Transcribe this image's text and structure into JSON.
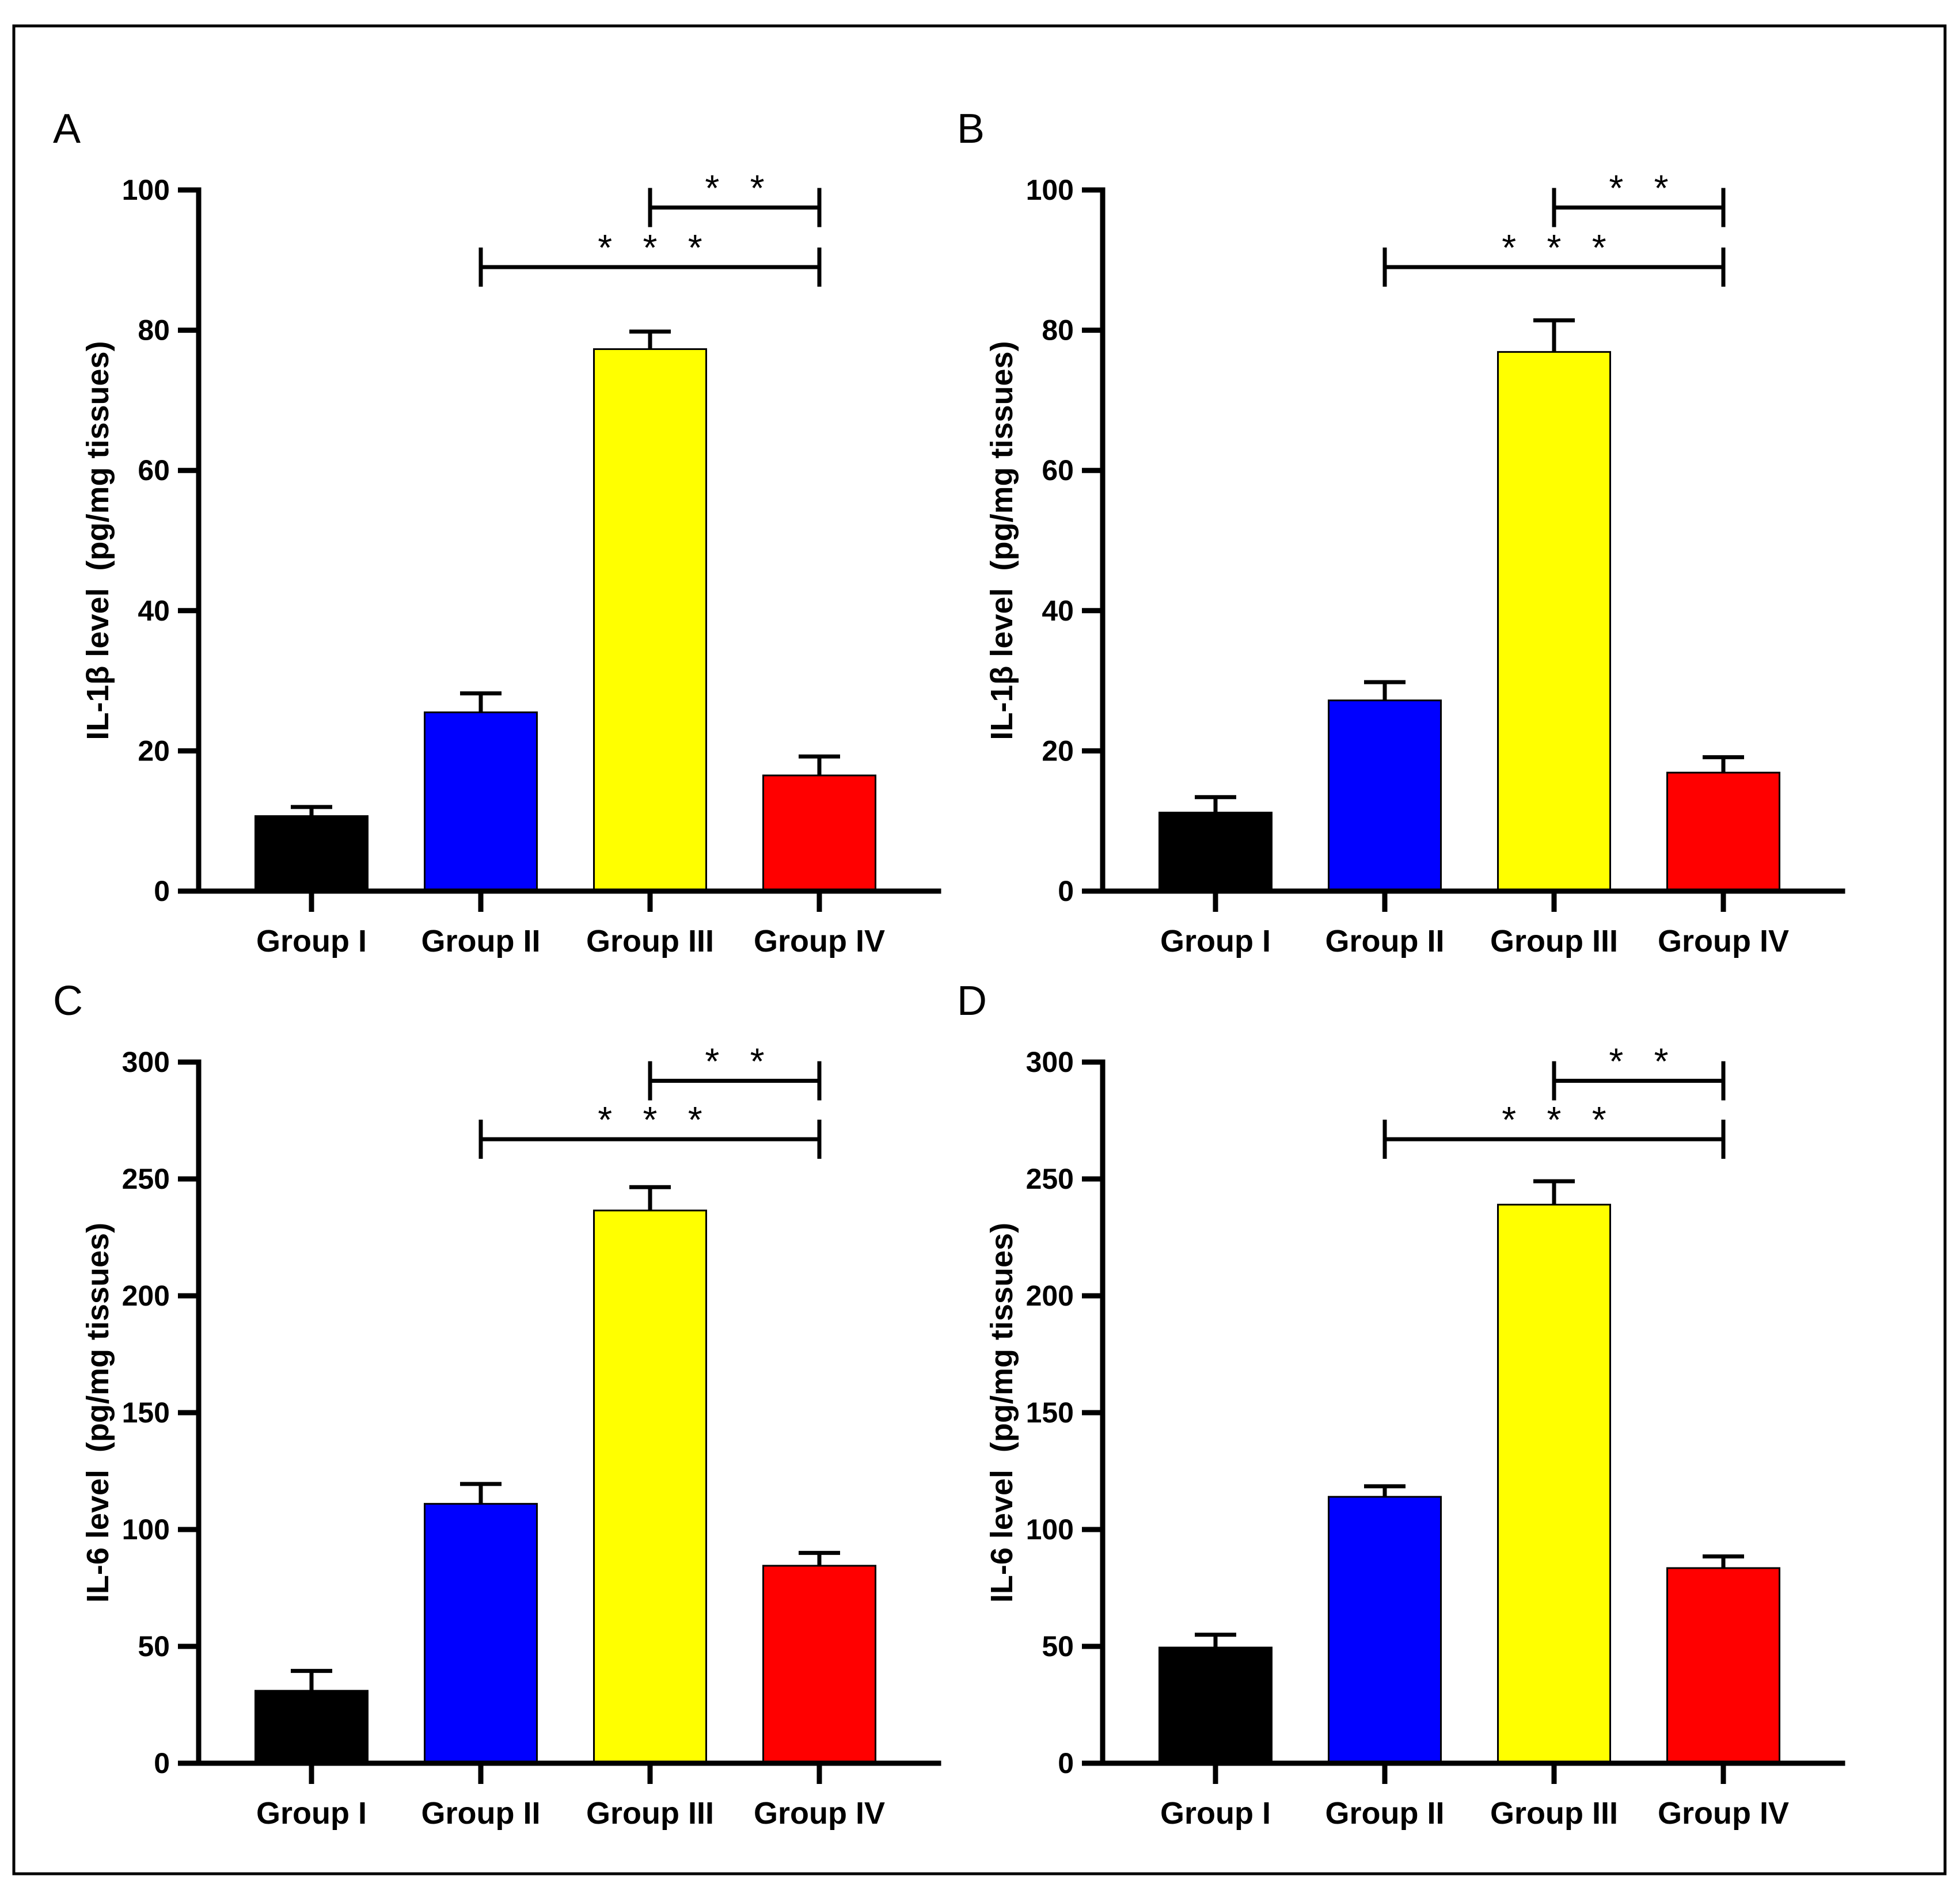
{
  "colors": {
    "group_i": "#000000",
    "group_ii": "#0000FF",
    "group_iii": "#FFFF00",
    "group_iv": "#FF0000"
  },
  "chart_data": [
    {
      "panel": "A",
      "type": "bar",
      "ylabel": "IL-1β level  (pg/mg tissues)",
      "ylim": [
        0,
        100
      ],
      "yticks": [
        0,
        20,
        40,
        60,
        80,
        100
      ],
      "categories": [
        "Group I",
        "Group II",
        "Group III",
        "Group IV"
      ],
      "values": [
        10.7,
        25.5,
        77.3,
        16.5
      ],
      "errors": [
        1.3,
        2.7,
        2.5,
        2.7
      ],
      "significance": [
        {
          "from": 2,
          "to": 3,
          "label": "* *",
          "y": 97.5
        },
        {
          "from": 1,
          "to": 3,
          "label": "* * *",
          "y": 89
        }
      ]
    },
    {
      "panel": "B",
      "type": "bar",
      "ylabel": "IL-1β level  (pg/mg tissues)",
      "ylim": [
        0,
        100
      ],
      "yticks": [
        0,
        20,
        40,
        60,
        80,
        100
      ],
      "categories": [
        "Group I",
        "Group II",
        "Group III",
        "Group IV"
      ],
      "values": [
        11.2,
        27.2,
        76.9,
        16.9
      ],
      "errors": [
        2.2,
        2.6,
        4.5,
        2.2
      ],
      "significance": [
        {
          "from": 2,
          "to": 3,
          "label": "* *",
          "y": 97.5
        },
        {
          "from": 1,
          "to": 3,
          "label": "* * *",
          "y": 89
        }
      ]
    },
    {
      "panel": "C",
      "type": "bar",
      "ylabel": "IL-6 level  (pg/mg tissues)",
      "ylim": [
        0,
        300
      ],
      "yticks": [
        0,
        50,
        100,
        150,
        200,
        250,
        300
      ],
      "categories": [
        "Group I",
        "Group II",
        "Group III",
        "Group IV"
      ],
      "values": [
        31,
        111,
        236.5,
        84.5
      ],
      "errors": [
        8.5,
        8.5,
        10,
        5.5
      ],
      "significance": [
        {
          "from": 2,
          "to": 3,
          "label": "* *",
          "y": 292
        },
        {
          "from": 1,
          "to": 3,
          "label": "* * *",
          "y": 267
        }
      ]
    },
    {
      "panel": "D",
      "type": "bar",
      "ylabel": "IL-6 level  (pg/mg tissues)",
      "ylim": [
        0,
        300
      ],
      "yticks": [
        0,
        50,
        100,
        150,
        200,
        250,
        300
      ],
      "categories": [
        "Group I",
        "Group II",
        "Group III",
        "Group IV"
      ],
      "values": [
        49.5,
        114,
        239,
        83.5
      ],
      "errors": [
        5.5,
        4.5,
        10,
        5
      ],
      "significance": [
        {
          "from": 2,
          "to": 3,
          "label": "* *",
          "y": 292
        },
        {
          "from": 1,
          "to": 3,
          "label": "* * *",
          "y": 267
        }
      ]
    }
  ]
}
